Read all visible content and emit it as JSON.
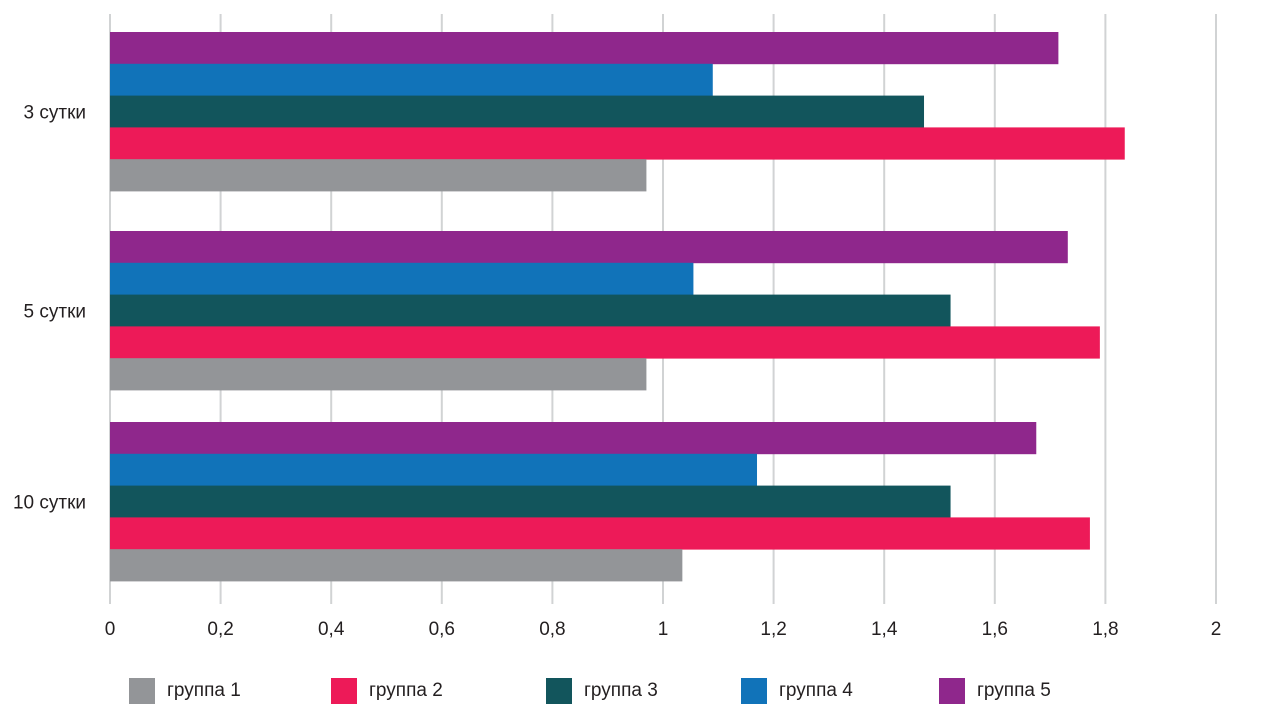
{
  "chart_data": {
    "type": "bar",
    "orientation": "horizontal",
    "categories": [
      "3 сутки",
      "5 сутки",
      "10 сутки"
    ],
    "series": [
      {
        "name": "группа 1",
        "color": "#939598",
        "values": [
          0.97,
          0.97,
          1.035
        ]
      },
      {
        "name": "группа 2",
        "color": "#ed1a58",
        "values": [
          1.835,
          1.79,
          1.772
        ]
      },
      {
        "name": "группа 3",
        "color": "#12555c",
        "values": [
          1.472,
          1.52,
          1.52
        ]
      },
      {
        "name": "группа 4",
        "color": "#1173b9",
        "values": [
          1.09,
          1.055,
          1.17
        ]
      },
      {
        "name": "группа 5",
        "color": "#8f278c",
        "values": [
          1.715,
          1.732,
          1.675
        ]
      }
    ],
    "xlim": [
      0,
      2
    ],
    "x_ticks": [
      "0",
      "0,2",
      "0,4",
      "0,6",
      "0,8",
      "1",
      "1,2",
      "1,4",
      "1,6",
      "1,8",
      "2"
    ],
    "grid": true,
    "legend_position": "bottom",
    "title": "",
    "xlabel": "",
    "ylabel": ""
  }
}
